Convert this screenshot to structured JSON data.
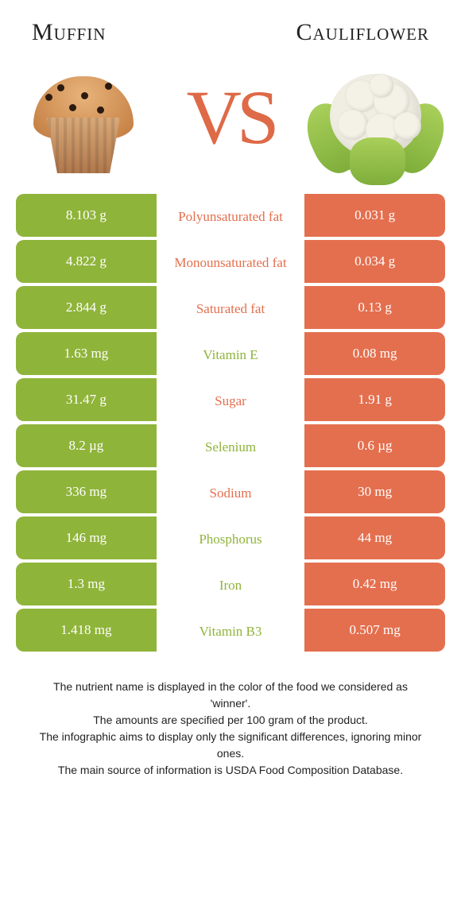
{
  "food_a": {
    "name": "Muffin",
    "color": "#8fb43a"
  },
  "food_b": {
    "name": "Cauliflower",
    "color": "#e46f4e"
  },
  "vs_text": "VS",
  "table": {
    "label_winner_a_color": "#e46f4e",
    "label_winner_b_color": "#8fb43a",
    "rows": [
      {
        "nutrient": "Polyunsaturated fat",
        "a": "8.103 g",
        "b": "0.031 g",
        "winner": "a"
      },
      {
        "nutrient": "Monounsaturated fat",
        "a": "4.822 g",
        "b": "0.034 g",
        "winner": "a"
      },
      {
        "nutrient": "Saturated fat",
        "a": "2.844 g",
        "b": "0.13 g",
        "winner": "a"
      },
      {
        "nutrient": "Vitamin E",
        "a": "1.63 mg",
        "b": "0.08 mg",
        "winner": "b"
      },
      {
        "nutrient": "Sugar",
        "a": "31.47 g",
        "b": "1.91 g",
        "winner": "a"
      },
      {
        "nutrient": "Selenium",
        "a": "8.2 µg",
        "b": "0.6 µg",
        "winner": "b"
      },
      {
        "nutrient": "Sodium",
        "a": "336 mg",
        "b": "30 mg",
        "winner": "a"
      },
      {
        "nutrient": "Phosphorus",
        "a": "146 mg",
        "b": "44 mg",
        "winner": "b"
      },
      {
        "nutrient": "Iron",
        "a": "1.3 mg",
        "b": "0.42 mg",
        "winner": "b"
      },
      {
        "nutrient": "Vitamin B3",
        "a": "1.418 mg",
        "b": "0.507 mg",
        "winner": "b"
      }
    ]
  },
  "footer_lines": [
    "The nutrient name is displayed in the color of the food we considered as 'winner'.",
    "The amounts are specified per 100 gram of the product.",
    "The infographic aims to display only the significant differences, ignoring minor ones.",
    "The main source of information is USDA Food Composition Database."
  ]
}
